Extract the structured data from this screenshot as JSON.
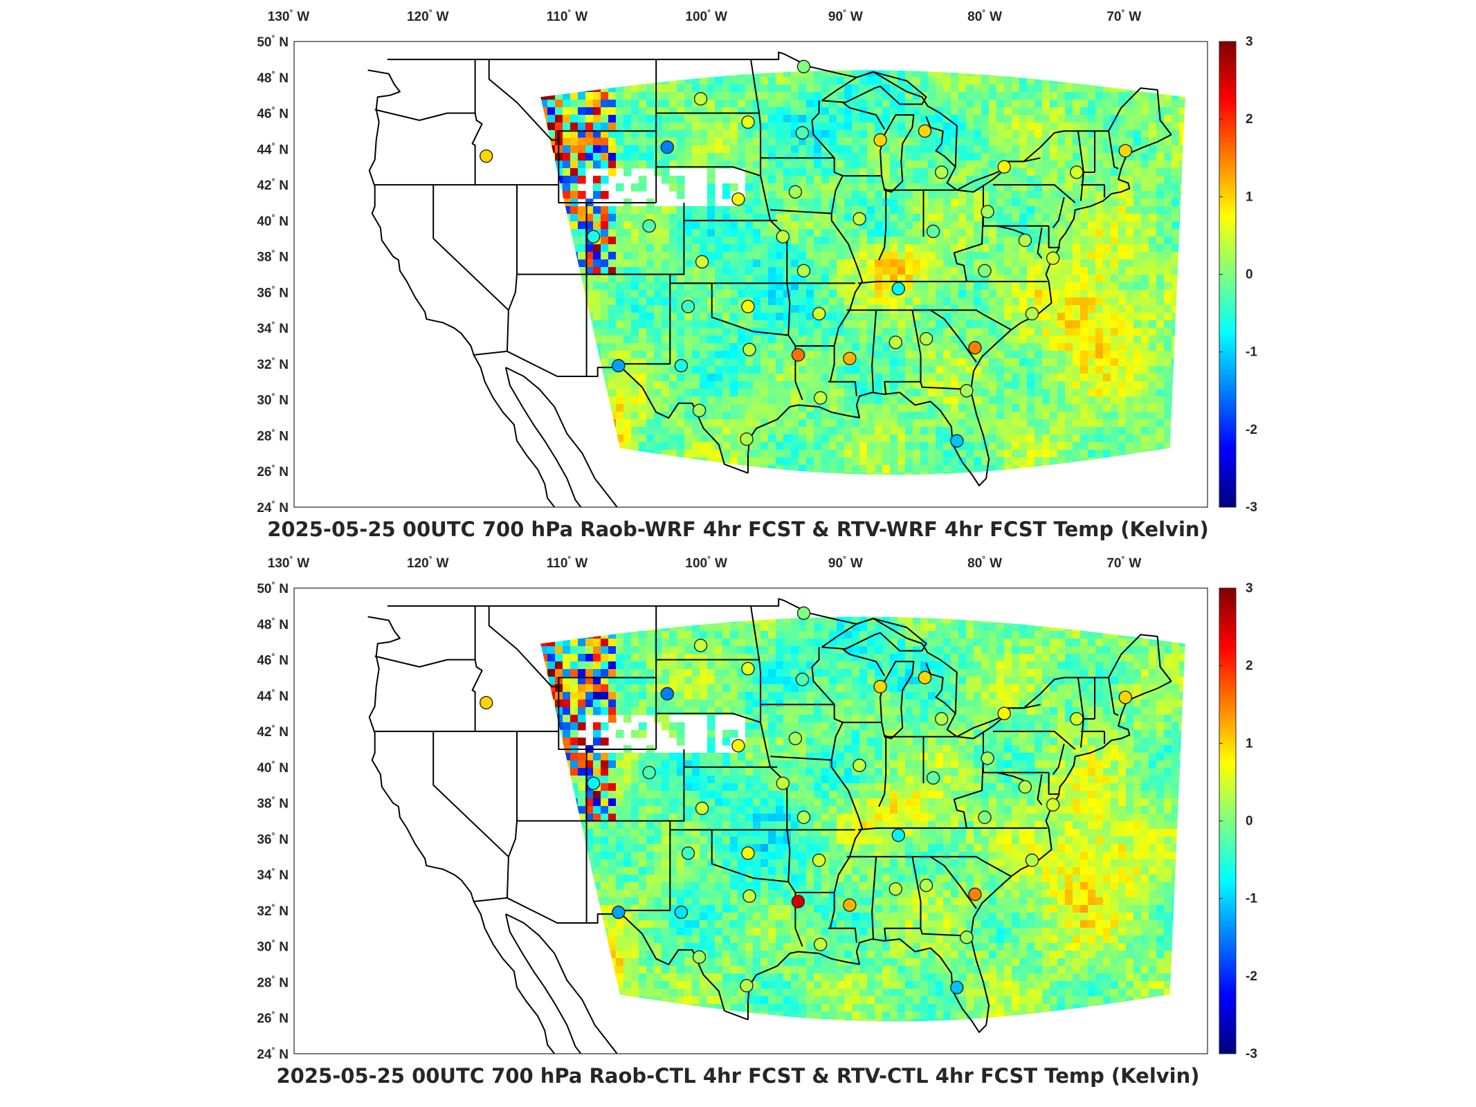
{
  "colorbar": {
    "colormap": "jet",
    "ticks": [
      "3",
      "2",
      "1",
      "0",
      "-1",
      "-2",
      "-3"
    ],
    "colors": [
      "#00007f",
      "#0000ff",
      "#007fff",
      "#00ffff",
      "#7fff7f",
      "#ffff00",
      "#ff7f00",
      "#ff0000",
      "#7f0000"
    ]
  },
  "lon_labels": [
    {
      "deg": "130",
      "hemi": "W"
    },
    {
      "deg": "120",
      "hemi": "W"
    },
    {
      "deg": "110",
      "hemi": "W"
    },
    {
      "deg": "100",
      "hemi": "W"
    },
    {
      "deg": "90",
      "hemi": "W"
    },
    {
      "deg": "80",
      "hemi": "W"
    },
    {
      "deg": "70",
      "hemi": "W"
    }
  ],
  "lat_labels": [
    {
      "deg": "50",
      "hemi": "N"
    },
    {
      "deg": "48",
      "hemi": "N"
    },
    {
      "deg": "46",
      "hemi": "N"
    },
    {
      "deg": "44",
      "hemi": "N"
    },
    {
      "deg": "42",
      "hemi": "N"
    },
    {
      "deg": "40",
      "hemi": "N"
    },
    {
      "deg": "38",
      "hemi": "N"
    },
    {
      "deg": "36",
      "hemi": "N"
    },
    {
      "deg": "34",
      "hemi": "N"
    },
    {
      "deg": "32",
      "hemi": "N"
    },
    {
      "deg": "30",
      "hemi": "N"
    },
    {
      "deg": "28",
      "hemi": "N"
    },
    {
      "deg": "26",
      "hemi": "N"
    },
    {
      "deg": "24",
      "hemi": "N"
    }
  ],
  "panels": [
    {
      "title": "2025-05-25 00UTC 700 hPa Raob-WRF 4hr FCST & RTV-WRF 4hr FCST Temp (Kelvin)",
      "stations": [
        {
          "lon": -93.4,
          "lat": 48.6,
          "value": 0.0
        },
        {
          "lon": -100.8,
          "lat": 46.8,
          "value": 0.4
        },
        {
          "lon": -97.4,
          "lat": 45.5,
          "value": 0.6
        },
        {
          "lon": -93.5,
          "lat": 44.9,
          "value": -0.3
        },
        {
          "lon": -103.2,
          "lat": 44.1,
          "value": -1.5
        },
        {
          "lon": -87.9,
          "lat": 44.5,
          "value": 1.0
        },
        {
          "lon": -84.7,
          "lat": 45.0,
          "value": 1.0
        },
        {
          "lon": -116.2,
          "lat": 43.6,
          "value": 1.0
        },
        {
          "lon": -83.5,
          "lat": 42.7,
          "value": 0.3
        },
        {
          "lon": -79.0,
          "lat": 43.0,
          "value": 0.8
        },
        {
          "lon": -73.8,
          "lat": 42.7,
          "value": 0.5
        },
        {
          "lon": -70.3,
          "lat": 43.9,
          "value": 1.0
        },
        {
          "lon": -98.1,
          "lat": 41.2,
          "value": 0.8
        },
        {
          "lon": -94.0,
          "lat": 41.6,
          "value": 0.2
        },
        {
          "lon": -89.4,
          "lat": 40.1,
          "value": 0.4
        },
        {
          "lon": -80.2,
          "lat": 40.5,
          "value": 0.2
        },
        {
          "lon": -84.1,
          "lat": 39.4,
          "value": -0.2
        },
        {
          "lon": -108.5,
          "lat": 39.1,
          "value": -0.6
        },
        {
          "lon": -104.5,
          "lat": 39.7,
          "value": -0.3
        },
        {
          "lon": -94.9,
          "lat": 39.1,
          "value": 0.4
        },
        {
          "lon": -77.5,
          "lat": 38.9,
          "value": 0.3
        },
        {
          "lon": -100.7,
          "lat": 37.7,
          "value": 0.5
        },
        {
          "lon": -93.4,
          "lat": 37.2,
          "value": 0.3
        },
        {
          "lon": -75.5,
          "lat": 37.9,
          "value": 0.5
        },
        {
          "lon": -80.4,
          "lat": 37.2,
          "value": 0.0
        },
        {
          "lon": -86.6,
          "lat": 36.2,
          "value": -0.8
        },
        {
          "lon": -101.7,
          "lat": 35.2,
          "value": -0.4
        },
        {
          "lon": -97.4,
          "lat": 35.2,
          "value": 0.8
        },
        {
          "lon": -92.3,
          "lat": 34.8,
          "value": 0.5
        },
        {
          "lon": -77.0,
          "lat": 34.8,
          "value": 0.3
        },
        {
          "lon": -84.6,
          "lat": 33.4,
          "value": 0.3
        },
        {
          "lon": -86.8,
          "lat": 33.2,
          "value": 0.4
        },
        {
          "lon": -90.1,
          "lat": 32.3,
          "value": 1.2
        },
        {
          "lon": -93.8,
          "lat": 32.5,
          "value": 1.6
        },
        {
          "lon": -97.3,
          "lat": 32.8,
          "value": 0.4
        },
        {
          "lon": -81.1,
          "lat": 32.9,
          "value": 1.5
        },
        {
          "lon": -106.7,
          "lat": 31.9,
          "value": -1.3
        },
        {
          "lon": -102.2,
          "lat": 31.9,
          "value": -0.6
        },
        {
          "lon": -100.9,
          "lat": 29.4,
          "value": 0.2
        },
        {
          "lon": -92.2,
          "lat": 30.1,
          "value": 0.4
        },
        {
          "lon": -81.7,
          "lat": 30.5,
          "value": 0.2
        },
        {
          "lon": -97.5,
          "lat": 27.8,
          "value": 0.3
        },
        {
          "lon": -82.4,
          "lat": 27.7,
          "value": -1.1
        }
      ]
    },
    {
      "title": "2025-05-25 00UTC 700 hPa Raob-CTL 4hr FCST & RTV-CTL 4hr FCST Temp (Kelvin)",
      "stations": [
        {
          "lon": -93.4,
          "lat": 48.6,
          "value": 0.0
        },
        {
          "lon": -100.8,
          "lat": 46.8,
          "value": 0.4
        },
        {
          "lon": -97.4,
          "lat": 45.5,
          "value": 0.6
        },
        {
          "lon": -93.5,
          "lat": 44.9,
          "value": -0.3
        },
        {
          "lon": -103.2,
          "lat": 44.1,
          "value": -1.5
        },
        {
          "lon": -87.9,
          "lat": 44.5,
          "value": 1.0
        },
        {
          "lon": -84.7,
          "lat": 45.0,
          "value": 1.0
        },
        {
          "lon": -116.2,
          "lat": 43.6,
          "value": 1.0
        },
        {
          "lon": -83.5,
          "lat": 42.7,
          "value": 0.3
        },
        {
          "lon": -79.0,
          "lat": 43.0,
          "value": 0.8
        },
        {
          "lon": -73.8,
          "lat": 42.7,
          "value": 0.5
        },
        {
          "lon": -70.3,
          "lat": 43.9,
          "value": 1.0
        },
        {
          "lon": -98.1,
          "lat": 41.2,
          "value": 0.8
        },
        {
          "lon": -94.0,
          "lat": 41.6,
          "value": 0.2
        },
        {
          "lon": -89.4,
          "lat": 40.1,
          "value": 0.4
        },
        {
          "lon": -80.2,
          "lat": 40.5,
          "value": 0.2
        },
        {
          "lon": -84.1,
          "lat": 39.4,
          "value": -0.2
        },
        {
          "lon": -108.5,
          "lat": 39.1,
          "value": -0.8
        },
        {
          "lon": -104.5,
          "lat": 39.7,
          "value": -0.3
        },
        {
          "lon": -94.9,
          "lat": 39.1,
          "value": 0.4
        },
        {
          "lon": -77.5,
          "lat": 38.9,
          "value": 0.3
        },
        {
          "lon": -100.7,
          "lat": 37.7,
          "value": 0.5
        },
        {
          "lon": -93.4,
          "lat": 37.2,
          "value": 0.3
        },
        {
          "lon": -75.5,
          "lat": 37.9,
          "value": 0.5
        },
        {
          "lon": -80.4,
          "lat": 37.2,
          "value": 0.0
        },
        {
          "lon": -86.6,
          "lat": 36.2,
          "value": -0.8
        },
        {
          "lon": -101.7,
          "lat": 35.2,
          "value": -0.4
        },
        {
          "lon": -97.4,
          "lat": 35.2,
          "value": 0.8
        },
        {
          "lon": -92.3,
          "lat": 34.8,
          "value": 0.5
        },
        {
          "lon": -77.0,
          "lat": 34.8,
          "value": 0.3
        },
        {
          "lon": -84.6,
          "lat": 33.4,
          "value": 0.3
        },
        {
          "lon": -86.8,
          "lat": 33.2,
          "value": 0.4
        },
        {
          "lon": -90.1,
          "lat": 32.3,
          "value": 1.2
        },
        {
          "lon": -93.8,
          "lat": 32.5,
          "value": 2.5
        },
        {
          "lon": -97.3,
          "lat": 32.8,
          "value": 0.4
        },
        {
          "lon": -81.1,
          "lat": 32.9,
          "value": 1.5
        },
        {
          "lon": -106.7,
          "lat": 31.9,
          "value": -1.3
        },
        {
          "lon": -102.2,
          "lat": 31.9,
          "value": -0.9
        },
        {
          "lon": -100.9,
          "lat": 29.4,
          "value": 0.2
        },
        {
          "lon": -92.2,
          "lat": 30.1,
          "value": 0.4
        },
        {
          "lon": -81.7,
          "lat": 30.5,
          "value": 0.2
        },
        {
          "lon": -97.5,
          "lat": 27.8,
          "value": 0.3
        },
        {
          "lon": -82.4,
          "lat": 27.7,
          "value": -1.1
        }
      ]
    }
  ]
}
